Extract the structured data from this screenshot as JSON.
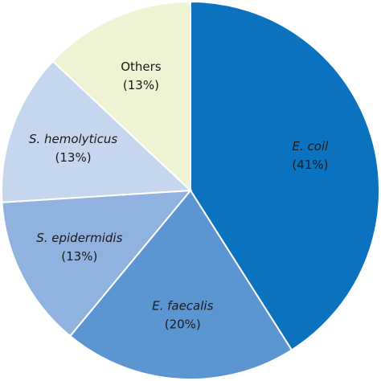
{
  "chart_data": {
    "type": "pie",
    "categories": [
      "E. coil",
      "E. faecalis",
      "S. epidermidis",
      "S. hemolyticus",
      "Others"
    ],
    "values": [
      41,
      20,
      13,
      13,
      13
    ],
    "value_labels": [
      "(41%)",
      "(20%)",
      "(13%)",
      "(13%)",
      "(13%)"
    ],
    "colors": [
      "#0b72bf",
      "#5b96d3",
      "#8fb2df",
      "#c6d6ee",
      "#eef3d4"
    ]
  }
}
